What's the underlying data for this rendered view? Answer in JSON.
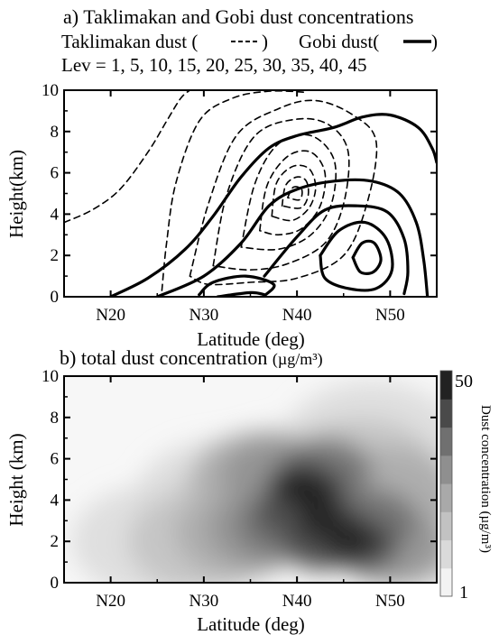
{
  "chart_data": [
    {
      "type": "contour",
      "title": "a) Taklimakan and Gobi dust concentrations",
      "legend_text": {
        "taklimakan": "Taklimakan dust (",
        "gobi": "Gobi dust("
      },
      "levels_text": "Lev = 1, 5, 10, 15, 20, 25, 30, 35, 40, 45",
      "levels": [
        1,
        5,
        10,
        15,
        20,
        25,
        30,
        35,
        40,
        45
      ],
      "xlabel": "Latitude (deg)",
      "ylabel": "Height(km)",
      "xlim": [
        15,
        55
      ],
      "ylim": [
        0,
        10
      ],
      "xticks": [
        {
          "value": 20,
          "label": "N20"
        },
        {
          "value": 30,
          "label": "N30"
        },
        {
          "value": 40,
          "label": "N40"
        },
        {
          "value": 50,
          "label": "N50"
        }
      ],
      "yticks": [
        {
          "value": 0,
          "label": "0"
        },
        {
          "value": 2,
          "label": "2"
        },
        {
          "value": 4,
          "label": "4"
        },
        {
          "value": 6,
          "label": "6"
        },
        {
          "value": 8,
          "label": "8"
        },
        {
          "value": 10,
          "label": "10"
        }
      ],
      "series": [
        {
          "name": "Taklimakan dust",
          "style": "dashed",
          "contours": [
            [
              [
                15.0,
                3.6
              ],
              [
                18,
                4.2
              ],
              [
                21,
                5.2
              ],
              [
                24,
                7.0
              ],
              [
                26,
                8.5
              ],
              [
                27.5,
                9.6
              ],
              [
                28.5,
                10.0
              ]
            ],
            [
              [
                25.5,
                0.3
              ],
              [
                26.0,
                2.6
              ],
              [
                27.0,
                5.5
              ],
              [
                29.5,
                8.5
              ],
              [
                33.0,
                9.6
              ],
              [
                37.0,
                9.95
              ],
              [
                41.0,
                9.9
              ]
            ],
            [
              [
                28.5,
                1.0
              ],
              [
                30.5,
                4.5
              ],
              [
                33.5,
                7.8
              ],
              [
                38,
                9.1
              ],
              [
                42,
                9.5
              ],
              [
                46,
                8.8
              ],
              [
                48.5,
                7.5
              ],
              [
                47.5,
                4.5
              ],
              [
                45,
                2.0
              ],
              [
                40,
                0.9
              ],
              [
                35,
                0.7
              ],
              [
                30.5,
                0.6
              ],
              [
                28.5,
                1.0
              ]
            ],
            [
              [
                31,
                1.5
              ],
              [
                32.5,
                5.0
              ],
              [
                35.5,
                7.8
              ],
              [
                40,
                8.6
              ],
              [
                43.5,
                8.3
              ],
              [
                45.5,
                7.0
              ],
              [
                45,
                4.5
              ],
              [
                43,
                2.6
              ],
              [
                39,
                1.6
              ],
              [
                35,
                1.3
              ],
              [
                31,
                1.5
              ]
            ],
            [
              [
                34,
                2.4
              ],
              [
                35.5,
                5.5
              ],
              [
                38,
                7.4
              ],
              [
                41.5,
                7.8
              ],
              [
                44,
                6.6
              ],
              [
                43.7,
                4.5
              ],
              [
                41.5,
                3.0
              ],
              [
                38,
                2.3
              ],
              [
                34,
                2.4
              ]
            ],
            [
              [
                36,
                3.2
              ],
              [
                36.8,
                5.4
              ],
              [
                39,
                6.8
              ],
              [
                41.5,
                7.0
              ],
              [
                43,
                6.0
              ],
              [
                42.5,
                4.4
              ],
              [
                40.5,
                3.3
              ],
              [
                38,
                3.0
              ],
              [
                36,
                3.2
              ]
            ],
            [
              [
                37.3,
                3.9
              ],
              [
                37.8,
                5.5
              ],
              [
                39.5,
                6.3
              ],
              [
                41.3,
                6.2
              ],
              [
                42,
                5.3
              ],
              [
                41.3,
                4.3
              ],
              [
                39.5,
                3.7
              ],
              [
                37.3,
                3.9
              ]
            ],
            [
              [
                38.4,
                4.4
              ],
              [
                38.8,
                5.4
              ],
              [
                40,
                5.8
              ],
              [
                41,
                5.6
              ],
              [
                41.2,
                4.9
              ],
              [
                40.4,
                4.3
              ],
              [
                38.4,
                4.4
              ]
            ],
            [
              [
                39.0,
                4.8
              ],
              [
                39.6,
                5.3
              ],
              [
                40.5,
                5.2
              ],
              [
                40.3,
                4.7
              ],
              [
                39.0,
                4.8
              ]
            ]
          ]
        },
        {
          "name": "Gobi dust",
          "style": "solid",
          "contours": [
            [
              [
                20.0,
                0.0
              ],
              [
                24,
                0.9
              ],
              [
                28,
                2.3
              ],
              [
                31,
                3.9
              ],
              [
                34,
                5.8
              ],
              [
                37,
                7.2
              ],
              [
                40,
                7.8
              ],
              [
                44,
                8.2
              ],
              [
                47,
                8.7
              ],
              [
                50,
                8.8
              ],
              [
                53,
                8.2
              ],
              [
                54.5,
                7.2
              ],
              [
                55,
                6.5
              ]
            ],
            [
              [
                25.0,
                0.0
              ],
              [
                30,
                1.0
              ],
              [
                34,
                2.6
              ],
              [
                37,
                4.4
              ],
              [
                40,
                5.2
              ],
              [
                44,
                5.6
              ],
              [
                48,
                5.6
              ],
              [
                51,
                5.0
              ],
              [
                52.8,
                3.6
              ],
              [
                53.6,
                1.8
              ],
              [
                54,
                0.0
              ]
            ],
            [
              [
                29.5,
                0.1
              ],
              [
                31,
                0.7
              ],
              [
                34.5,
                1.0
              ],
              [
                37.5,
                0.6
              ],
              [
                36.5,
                0.05
              ]
            ],
            [
              [
                31.5,
                0.0
              ],
              [
                35,
                0.2
              ],
              [
                36.5,
                0.1
              ]
            ],
            [
              [
                36.5,
                1.0
              ],
              [
                40,
                2.9
              ],
              [
                43,
                4.2
              ],
              [
                46.5,
                4.4
              ],
              [
                49.7,
                4.1
              ],
              [
                51.5,
                2.8
              ],
              [
                51.9,
                1.2
              ],
              [
                51.5,
                0.15
              ]
            ],
            [
              [
                42.5,
                2.0
              ],
              [
                44.5,
                3.2
              ],
              [
                47.3,
                3.6
              ],
              [
                49.6,
                2.8
              ],
              [
                50.2,
                1.3
              ],
              [
                48.5,
                0.4
              ],
              [
                45.5,
                0.4
              ],
              [
                43.0,
                0.9
              ],
              [
                42.5,
                2.0
              ]
            ],
            [
              [
                46.0,
                1.9
              ],
              [
                47,
                2.6
              ],
              [
                48.3,
                2.6
              ],
              [
                49.0,
                1.8
              ],
              [
                48.2,
                1.2
              ],
              [
                46.8,
                1.2
              ],
              [
                46.0,
                1.9
              ]
            ]
          ]
        }
      ]
    },
    {
      "type": "heatmap",
      "title": "b) total dust concentration",
      "title_unit": "(µg/m³)",
      "xlabel": "Latitude (deg)",
      "ylabel": "Height (km)",
      "xlim": [
        15,
        55
      ],
      "ylim": [
        0,
        10
      ],
      "xticks": [
        {
          "value": 20,
          "label": "N20"
        },
        {
          "value": 30,
          "label": "N30"
        },
        {
          "value": 40,
          "label": "N40"
        },
        {
          "value": 50,
          "label": "N50"
        }
      ],
      "yticks": [
        {
          "value": 0,
          "label": "0"
        },
        {
          "value": 2,
          "label": "2"
        },
        {
          "value": 4,
          "label": "4"
        },
        {
          "value": 6,
          "label": "6"
        },
        {
          "value": 8,
          "label": "8"
        },
        {
          "value": 10,
          "label": "10"
        }
      ],
      "colorbar": {
        "label": "Dust concentration (µg/m³)",
        "min": 1,
        "max": 50,
        "min_label": "1",
        "max_label": "50",
        "colors": [
          "#f3f3f3",
          "#dadada",
          "#c2c2c2",
          "#a9a9a9",
          "#8f8f8f",
          "#707070",
          "#4a4a4a",
          "#222222"
        ]
      },
      "cells": [
        {
          "lat": 42,
          "h": 4.2,
          "level": 7
        },
        {
          "lat": 43,
          "h": 3.0,
          "level": 7
        },
        {
          "lat": 46,
          "h": 2.0,
          "level": 7
        },
        {
          "lat": 40,
          "h": 4.8,
          "level": 7
        },
        {
          "lat": 41,
          "h": 4.6,
          "level": 6
        },
        {
          "lat": 44,
          "h": 2.6,
          "level": 6
        },
        {
          "lat": 47,
          "h": 1.8,
          "level": 6
        },
        {
          "lat": 39.5,
          "h": 3.4,
          "level": 6
        },
        {
          "lat": 42.5,
          "h": 1.8,
          "level": 6
        },
        {
          "lat": 41,
          "h": 4.4,
          "level": 5
        },
        {
          "lat": 45,
          "h": 2.4,
          "level": 5
        },
        {
          "lat": 43,
          "h": 5.5,
          "level": 5
        },
        {
          "lat": 38.5,
          "h": 2.8,
          "level": 5
        },
        {
          "lat": 48,
          "h": 3.0,
          "level": 5
        },
        {
          "lat": 42,
          "h": 4.0,
          "level": 4
        },
        {
          "lat": 46,
          "h": 2.6,
          "level": 4
        },
        {
          "lat": 38,
          "h": 5.2,
          "level": 4
        },
        {
          "lat": 36.5,
          "h": 2.6,
          "level": 4
        },
        {
          "lat": 50,
          "h": 1.8,
          "level": 4
        },
        {
          "lat": 42,
          "h": 4.2,
          "level": 3
        },
        {
          "lat": 46,
          "h": 3.2,
          "level": 3
        },
        {
          "lat": 36,
          "h": 5.2,
          "level": 3
        },
        {
          "lat": 34,
          "h": 2.4,
          "level": 3
        },
        {
          "lat": 50,
          "h": 4.4,
          "level": 3
        },
        {
          "lat": 41,
          "h": 4.6,
          "level": 2
        },
        {
          "lat": 35,
          "h": 4.0,
          "level": 2
        },
        {
          "lat": 47,
          "h": 5.5,
          "level": 2
        },
        {
          "lat": 30,
          "h": 2.0,
          "level": 2
        },
        {
          "lat": 52,
          "h": 2.2,
          "level": 2
        },
        {
          "lat": 40,
          "h": 5.0,
          "level": 1
        },
        {
          "lat": 32,
          "h": 4.2,
          "level": 1
        },
        {
          "lat": 48,
          "h": 7.0,
          "level": 1
        },
        {
          "lat": 25,
          "h": 2.0,
          "level": 1
        },
        {
          "lat": 52,
          "h": 3.5,
          "level": 1
        }
      ]
    }
  ]
}
